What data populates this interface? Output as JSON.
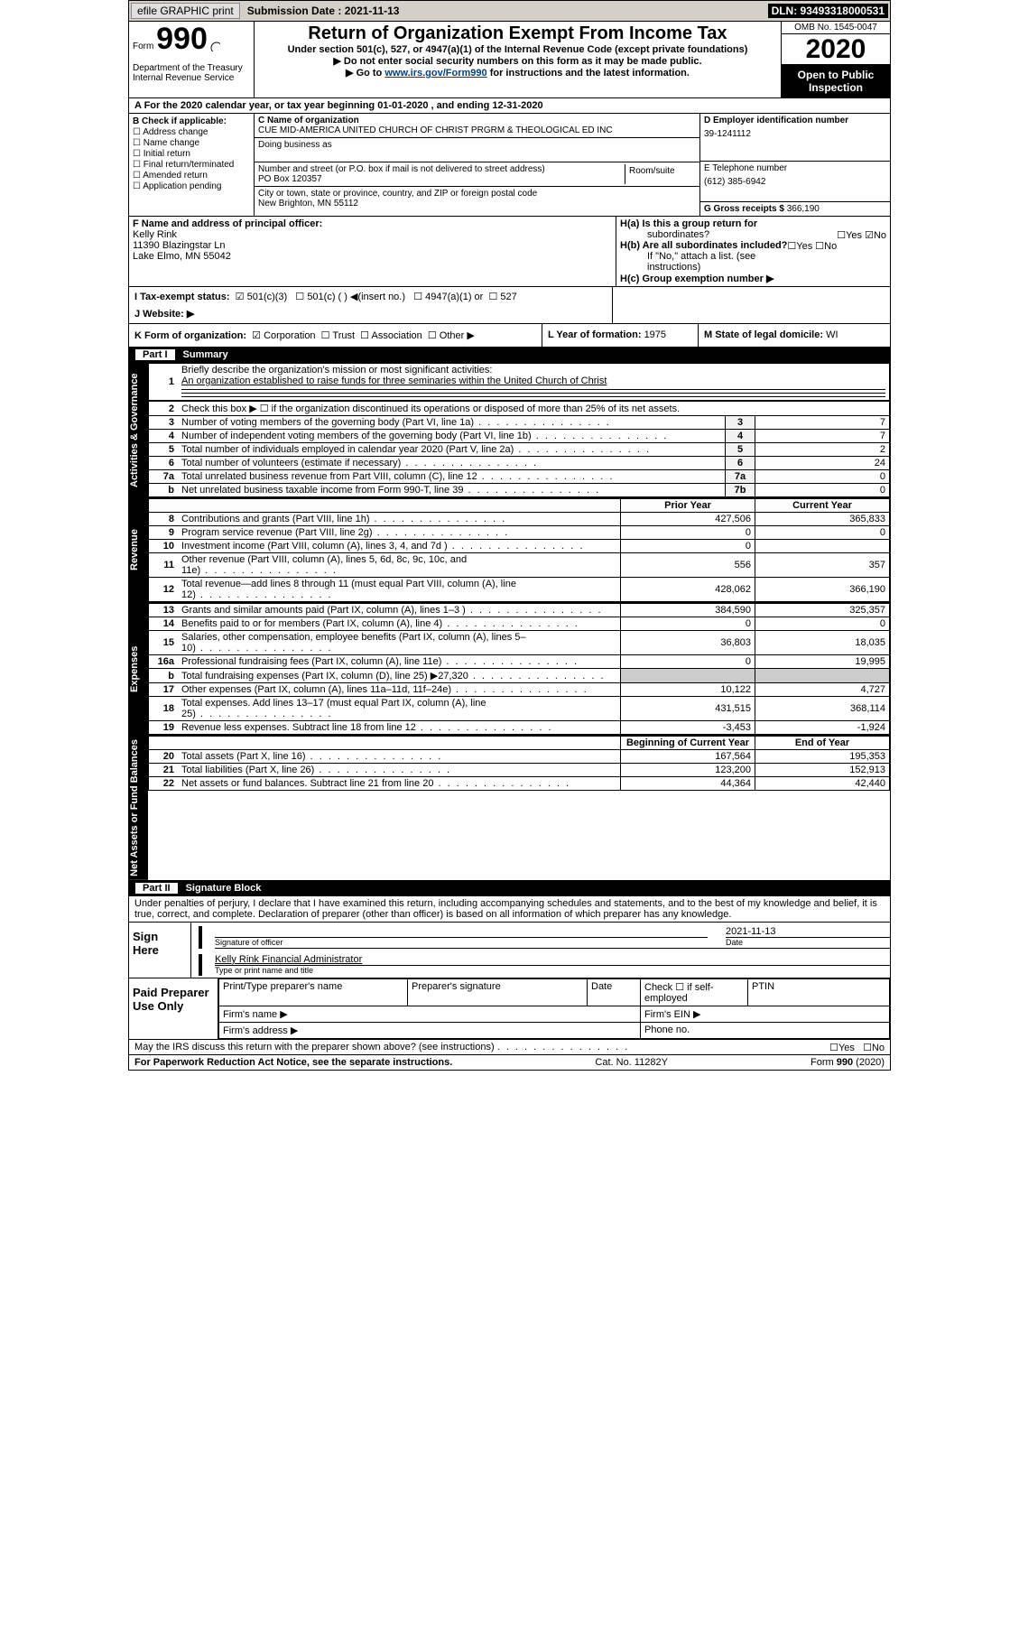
{
  "topbar": {
    "efile": "efile GRAPHIC print",
    "sub_label": "Submission Date : ",
    "sub_date": "2021-11-13",
    "dln": "DLN: 93493318000531"
  },
  "header": {
    "form_prefix": "Form",
    "form_number": "990",
    "dept": "Department of the Treasury\nInternal Revenue Service",
    "title": "Return of Organization Exempt From Income Tax",
    "sub": "Under section 501(c), 527, or 4947(a)(1) of the Internal Revenue Code (except private foundations)",
    "inst1": "▶ Do not enter social security numbers on this form as it may be made public.",
    "inst2_pre": "▶ Go to ",
    "inst2_link": "www.irs.gov/Form990",
    "inst2_post": " for instructions and the latest information.",
    "omb": "OMB No. 1545-0047",
    "year": "2020",
    "otp": "Open to Public Inspection"
  },
  "row_a": "A For the 2020 calendar year, or tax year beginning 01-01-2020   , and ending 12-31-2020",
  "sec_b": {
    "b_label": "B Check if applicable:",
    "checkboxes": [
      "Address change",
      "Name change",
      "Initial return",
      "Final return/terminated",
      "Amended return",
      "Application pending"
    ],
    "c_label": "C Name of organization",
    "c_value": "CUE MID-AMERICA UNITED CHURCH OF CHRIST PRGRM & THEOLOGICAL ED INC",
    "dba_label": "Doing business as",
    "addr_label": "Number and street (or P.O. box if mail is not delivered to street address)",
    "addr_value": "PO Box 120357",
    "suite_label": "Room/suite",
    "city_label": "City or town, state or province, country, and ZIP or foreign postal code",
    "city_value": "New Brighton, MN  55112",
    "d_label": "D Employer identification number",
    "d_value": "39-1241112",
    "e_label": "E Telephone number",
    "e_value": "(612) 385-6942",
    "g_label": "G Gross receipts $ ",
    "g_value": "366,190"
  },
  "sec_fh": {
    "f_label": "F Name and address of principal officer:",
    "f_name": "Kelly Rink",
    "f_addr1": "11390 Blazingstar Ln",
    "f_addr2": "Lake Elmo, MN  55042",
    "ha_label": "H(a)  Is this a group return for",
    "ha_sub": "subordinates?",
    "ha_yes": "Yes",
    "ha_no": "No",
    "hb_label": "H(b)  Are all subordinates included?",
    "hb_yes": "Yes",
    "hb_no": "No",
    "hb_note": "If \"No,\" attach a list. (see instructions)",
    "hc_label": "H(c)  Group exemption number ▶"
  },
  "sec_ij": {
    "i_label": "I   Tax-exempt status:",
    "i_501c3": "501(c)(3)",
    "i_501c": "501(c) (  ) ◀(insert no.)",
    "i_4947": "4947(a)(1) or",
    "i_527": "527",
    "j_label": "J   Website: ▶"
  },
  "sec_k": {
    "k_label": "K Form of organization:",
    "k_corp": "Corporation",
    "k_trust": "Trust",
    "k_assoc": "Association",
    "k_other": "Other ▶",
    "l_label": "L Year of formation: ",
    "l_value": "1975",
    "m_label": "M State of legal domicile: ",
    "m_value": "WI"
  },
  "parts": {
    "part1": "Part I",
    "part1_title": "Summary",
    "part2": "Part II",
    "part2_title": "Signature Block"
  },
  "sidebars": {
    "ag": "Activities & Governance",
    "rev": "Revenue",
    "exp": "Expenses",
    "na": "Net Assets or Fund Balances"
  },
  "q1": {
    "num": "1",
    "label": "Briefly describe the organization's mission or most significant activities:",
    "value": "An organization established to raise funds for three seminaries within the United Church of Christ"
  },
  "ag_rows": [
    {
      "n": "2",
      "t": "Check this box ▶ ☐  if the organization discontinued its operations or disposed of more than 25% of its net assets."
    },
    {
      "n": "3",
      "t": "Number of voting members of the governing body (Part VI, line 1a)",
      "box": "3",
      "v": "7"
    },
    {
      "n": "4",
      "t": "Number of independent voting members of the governing body (Part VI, line 1b)",
      "box": "4",
      "v": "7"
    },
    {
      "n": "5",
      "t": "Total number of individuals employed in calendar year 2020 (Part V, line 2a)",
      "box": "5",
      "v": "2"
    },
    {
      "n": "6",
      "t": "Total number of volunteers (estimate if necessary)",
      "box": "6",
      "v": "24"
    },
    {
      "n": "7a",
      "t": "Total unrelated business revenue from Part VIII, column (C), line 12",
      "box": "7a",
      "v": "0"
    },
    {
      "n": "b",
      "t": "Net unrelated business taxable income from Form 990-T, line 39",
      "box": "7b",
      "v": "0"
    }
  ],
  "col_hdrs": {
    "py": "Prior Year",
    "cy": "Current Year",
    "bcy": "Beginning of Current Year",
    "eoy": "End of Year"
  },
  "rev_rows": [
    {
      "n": "8",
      "t": "Contributions and grants (Part VIII, line 1h)",
      "py": "427,506",
      "cy": "365,833"
    },
    {
      "n": "9",
      "t": "Program service revenue (Part VIII, line 2g)",
      "py": "0",
      "cy": "0"
    },
    {
      "n": "10",
      "t": "Investment income (Part VIII, column (A), lines 3, 4, and 7d )",
      "py": "0",
      "cy": ""
    },
    {
      "n": "11",
      "t": "Other revenue (Part VIII, column (A), lines 5, 6d, 8c, 9c, 10c, and 11e)",
      "py": "556",
      "cy": "357"
    },
    {
      "n": "12",
      "t": "Total revenue—add lines 8 through 11 (must equal Part VIII, column (A), line 12)",
      "py": "428,062",
      "cy": "366,190"
    }
  ],
  "exp_rows": [
    {
      "n": "13",
      "t": "Grants and similar amounts paid (Part IX, column (A), lines 1–3 )",
      "py": "384,590",
      "cy": "325,357"
    },
    {
      "n": "14",
      "t": "Benefits paid to or for members (Part IX, column (A), line 4)",
      "py": "0",
      "cy": "0"
    },
    {
      "n": "15",
      "t": "Salaries, other compensation, employee benefits (Part IX, column (A), lines 5–10)",
      "py": "36,803",
      "cy": "18,035"
    },
    {
      "n": "16a",
      "t": "Professional fundraising fees (Part IX, column (A), line 11e)",
      "py": "0",
      "cy": "19,995"
    },
    {
      "n": "b",
      "t": "Total fundraising expenses (Part IX, column (D), line 25) ▶27,320",
      "py": "",
      "cy": "",
      "nb": true
    },
    {
      "n": "17",
      "t": "Other expenses (Part IX, column (A), lines 11a–11d, 11f–24e)",
      "py": "10,122",
      "cy": "4,727"
    },
    {
      "n": "18",
      "t": "Total expenses. Add lines 13–17 (must equal Part IX, column (A), line 25)",
      "py": "431,515",
      "cy": "368,114"
    },
    {
      "n": "19",
      "t": "Revenue less expenses. Subtract line 18 from line 12",
      "py": "-3,453",
      "cy": "-1,924"
    }
  ],
  "na_rows": [
    {
      "n": "20",
      "t": "Total assets (Part X, line 16)",
      "py": "167,564",
      "cy": "195,353"
    },
    {
      "n": "21",
      "t": "Total liabilities (Part X, line 26)",
      "py": "123,200",
      "cy": "152,913"
    },
    {
      "n": "22",
      "t": "Net assets or fund balances. Subtract line 21 from line 20",
      "py": "44,364",
      "cy": "42,440"
    }
  ],
  "sig_declaration": "Under penalties of perjury, I declare that I have examined this return, including accompanying schedules and statements, and to the best of my knowledge and belief, it is true, correct, and complete. Declaration of preparer (other than officer) is based on all information of which preparer has any knowledge.",
  "sign": {
    "here": "Sign Here",
    "sig_lbl": "Signature of officer",
    "date_lbl": "Date",
    "date_val": "2021-11-13",
    "name_val": "Kelly Rink  Financial Administrator",
    "name_lbl": "Type or print name and title"
  },
  "paid": {
    "hdr": "Paid Preparer Use Only",
    "name_lbl": "Print/Type preparer's name",
    "sig_lbl": "Preparer's signature",
    "date_lbl": "Date",
    "check_lbl": "Check ☐ if self-employed",
    "ptin_lbl": "PTIN",
    "firm_name": "Firm's name   ▶",
    "firm_ein": "Firm's EIN ▶",
    "firm_addr": "Firm's address ▶",
    "phone": "Phone no."
  },
  "discuss": {
    "q": "May the IRS discuss this return with the preparer shown above? (see instructions)",
    "yes": "Yes",
    "no": "No"
  },
  "footer": {
    "pra": "For Paperwork Reduction Act Notice, see the separate instructions.",
    "cat": "Cat. No. 11282Y",
    "form": "Form 990 (2020)"
  },
  "colors": {
    "black": "#000000",
    "link": "#004080",
    "gray": "#d4d0c8",
    "lgray": "#f2f2f2"
  }
}
